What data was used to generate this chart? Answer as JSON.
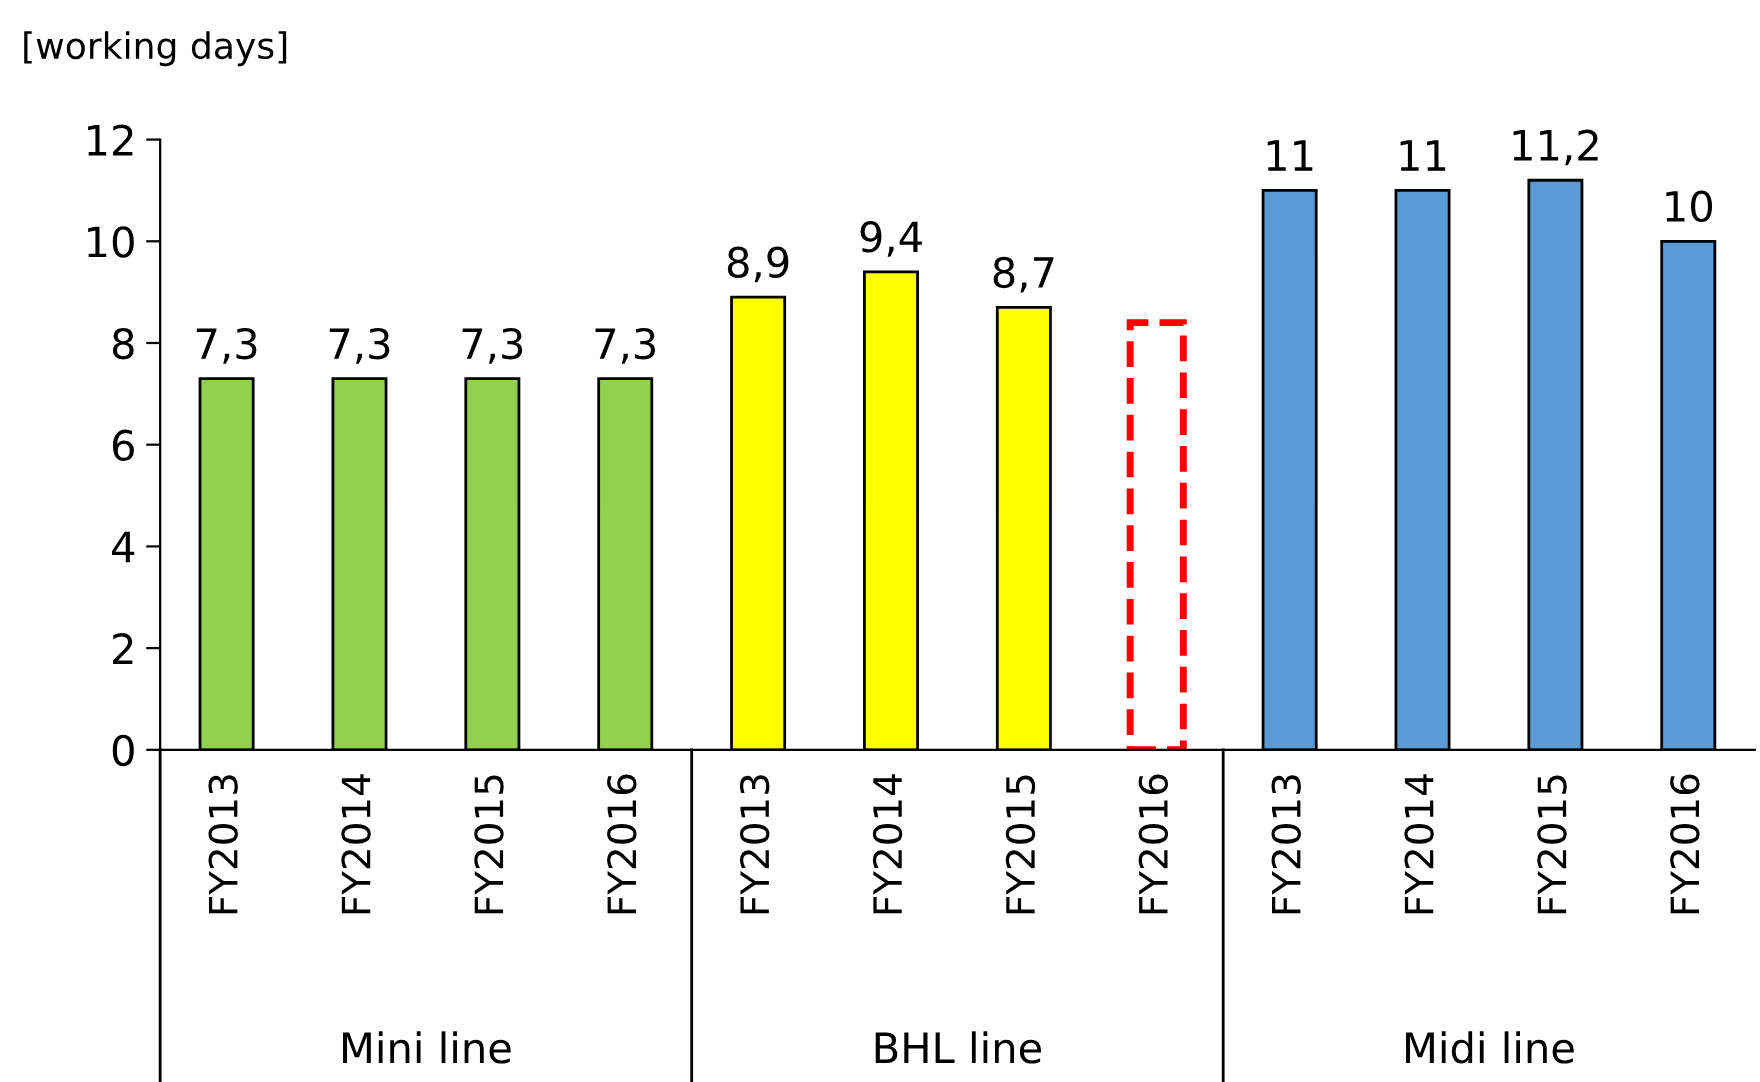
{
  "chart_data": {
    "type": "bar",
    "ylabel": "[working days]",
    "categories": [
      "FY2013",
      "FY2014",
      "FY2015",
      "FY2016",
      "FY2013",
      "FY2014",
      "FY2015",
      "FY2016",
      "FY2013",
      "FY2014",
      "FY2015",
      "FY2016"
    ],
    "series": [
      {
        "colors": [
          "#92d050",
          "#92d050",
          "#92d050",
          "#92d050",
          "#ffff00",
          "#ffff00",
          "#ffff00",
          null,
          "#5b9bd5",
          "#5b9bd5",
          "#5b9bd5",
          "#5b9bd5"
        ],
        "values": [
          7.3,
          7.3,
          7.3,
          7.3,
          8.9,
          9.4,
          8.7,
          null,
          11,
          11,
          11.2,
          10
        ],
        "value_labels": [
          "7,3",
          "7,3",
          "7,3",
          "7,3",
          "8,9",
          "9,4",
          "8,7",
          null,
          "11",
          "11",
          "11,2",
          "10"
        ]
      },
      {
        "color": "#ff0000",
        "line_style": "dashed",
        "values": [
          null,
          null,
          null,
          null,
          null,
          null,
          null,
          8.4,
          null,
          null,
          null,
          null
        ]
      }
    ],
    "annotations": [
      "Mini line",
      "BHL line",
      "Midi line"
    ],
    "ylim": [
      0,
      12
    ],
    "yticks": [
      0,
      2,
      4,
      6,
      8,
      10,
      12
    ],
    "grid": false
  }
}
